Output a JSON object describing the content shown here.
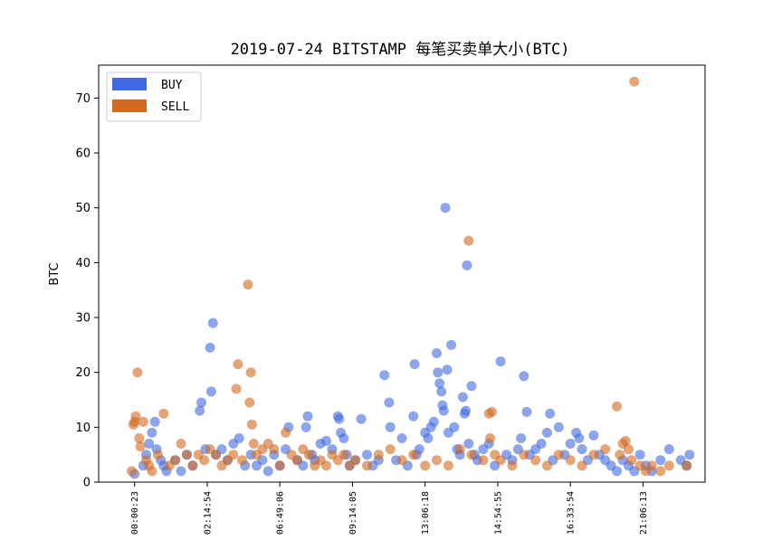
{
  "chart_data": {
    "type": "scatter",
    "title": "2019-07-24 BITSTAMP 每笔买卖单大小(BTC)",
    "ylabel": "BTC",
    "xlabel": "",
    "ylim": [
      0,
      76
    ],
    "yticks": [
      0,
      10,
      20,
      30,
      40,
      50,
      60,
      70
    ],
    "xlim": [
      0,
      1000
    ],
    "xticks": [
      {
        "x": 40,
        "label": "00:00:23"
      },
      {
        "x": 165,
        "label": "02:14:54"
      },
      {
        "x": 290,
        "label": "06:49:06"
      },
      {
        "x": 415,
        "label": "09:14:05"
      },
      {
        "x": 540,
        "label": "13:06:18"
      },
      {
        "x": 665,
        "label": "14:54:55"
      },
      {
        "x": 790,
        "label": "16:33:54"
      },
      {
        "x": 915,
        "label": "21:06:13"
      }
    ],
    "grid": false,
    "legend_position": "top-left",
    "series": [
      {
        "name": "BUY",
        "color": "#4169e1",
        "points": [
          [
            40,
            1.5
          ],
          [
            55,
            3
          ],
          [
            60,
            5
          ],
          [
            65,
            7
          ],
          [
            70,
            9
          ],
          [
            75,
            11
          ],
          [
            78,
            6
          ],
          [
            85,
            4
          ],
          [
            90,
            3
          ],
          [
            95,
            2
          ],
          [
            110,
            4
          ],
          [
            120,
            2
          ],
          [
            130,
            5
          ],
          [
            140,
            3
          ],
          [
            152,
            13
          ],
          [
            155,
            14.5
          ],
          [
            162,
            6
          ],
          [
            170,
            24.5
          ],
          [
            172,
            16.5
          ],
          [
            175,
            29
          ],
          [
            180,
            5
          ],
          [
            190,
            6
          ],
          [
            200,
            4
          ],
          [
            210,
            7
          ],
          [
            220,
            8
          ],
          [
            230,
            3
          ],
          [
            240,
            5
          ],
          [
            250,
            3
          ],
          [
            260,
            4
          ],
          [
            270,
            2
          ],
          [
            280,
            5
          ],
          [
            290,
            3
          ],
          [
            300,
            6
          ],
          [
            305,
            10
          ],
          [
            320,
            4
          ],
          [
            330,
            3
          ],
          [
            335,
            10
          ],
          [
            338,
            12
          ],
          [
            345,
            5
          ],
          [
            350,
            4
          ],
          [
            360,
            7
          ],
          [
            370,
            7.5
          ],
          [
            380,
            6
          ],
          [
            390,
            12
          ],
          [
            392,
            11.5
          ],
          [
            395,
            9
          ],
          [
            400,
            8
          ],
          [
            405,
            5
          ],
          [
            410,
            3
          ],
          [
            420,
            4
          ],
          [
            430,
            11.5
          ],
          [
            440,
            5
          ],
          [
            450,
            3
          ],
          [
            460,
            4
          ],
          [
            470,
            19.5
          ],
          [
            478,
            14.5
          ],
          [
            480,
            10
          ],
          [
            490,
            4
          ],
          [
            500,
            8
          ],
          [
            510,
            3
          ],
          [
            520,
            12
          ],
          [
            522,
            21.5
          ],
          [
            525,
            5
          ],
          [
            530,
            6
          ],
          [
            540,
            9
          ],
          [
            545,
            8
          ],
          [
            550,
            10
          ],
          [
            555,
            11
          ],
          [
            560,
            23.5
          ],
          [
            562,
            20
          ],
          [
            565,
            18
          ],
          [
            568,
            16.5
          ],
          [
            570,
            14
          ],
          [
            572,
            13
          ],
          [
            575,
            50
          ],
          [
            578,
            20.5
          ],
          [
            580,
            9
          ],
          [
            585,
            25
          ],
          [
            590,
            10
          ],
          [
            595,
            6
          ],
          [
            600,
            5
          ],
          [
            605,
            15.5
          ],
          [
            608,
            12.5
          ],
          [
            610,
            13
          ],
          [
            612,
            39.5
          ],
          [
            615,
            7
          ],
          [
            620,
            17.5
          ],
          [
            625,
            5
          ],
          [
            630,
            4
          ],
          [
            640,
            6
          ],
          [
            650,
            7
          ],
          [
            660,
            3
          ],
          [
            670,
            22
          ],
          [
            680,
            5
          ],
          [
            690,
            4
          ],
          [
            700,
            6
          ],
          [
            705,
            8
          ],
          [
            710,
            19.3
          ],
          [
            715,
            12.8
          ],
          [
            720,
            5
          ],
          [
            730,
            6
          ],
          [
            740,
            7
          ],
          [
            750,
            9
          ],
          [
            755,
            12.5
          ],
          [
            760,
            4
          ],
          [
            770,
            10
          ],
          [
            780,
            5
          ],
          [
            790,
            7
          ],
          [
            800,
            9
          ],
          [
            805,
            8
          ],
          [
            810,
            6
          ],
          [
            820,
            4
          ],
          [
            830,
            8.5
          ],
          [
            840,
            5
          ],
          [
            850,
            4
          ],
          [
            860,
            3
          ],
          [
            870,
            2
          ],
          [
            880,
            4
          ],
          [
            890,
            3
          ],
          [
            900,
            2
          ],
          [
            910,
            5
          ],
          [
            920,
            3
          ],
          [
            930,
            2
          ],
          [
            945,
            4
          ],
          [
            960,
            6
          ],
          [
            980,
            4
          ],
          [
            990,
            3
          ],
          [
            995,
            5
          ]
        ]
      },
      {
        "name": "SELL",
        "color": "#d2691e",
        "points": [
          [
            35,
            2
          ],
          [
            38,
            10.5
          ],
          [
            40,
            11
          ],
          [
            42,
            12
          ],
          [
            45,
            20
          ],
          [
            48,
            8
          ],
          [
            50,
            6.5
          ],
          [
            55,
            11
          ],
          [
            60,
            4
          ],
          [
            65,
            3
          ],
          [
            70,
            2
          ],
          [
            80,
            5
          ],
          [
            90,
            12.5
          ],
          [
            100,
            3
          ],
          [
            110,
            4
          ],
          [
            120,
            7
          ],
          [
            130,
            5
          ],
          [
            140,
            3
          ],
          [
            150,
            5
          ],
          [
            160,
            4
          ],
          [
            170,
            6
          ],
          [
            180,
            5
          ],
          [
            190,
            3
          ],
          [
            200,
            4
          ],
          [
            210,
            5
          ],
          [
            215,
            17
          ],
          [
            218,
            21.5
          ],
          [
            225,
            4
          ],
          [
            235,
            36
          ],
          [
            238,
            14.5
          ],
          [
            240,
            20
          ],
          [
            242,
            10.5
          ],
          [
            245,
            7
          ],
          [
            250,
            5
          ],
          [
            260,
            6
          ],
          [
            270,
            7
          ],
          [
            280,
            6
          ],
          [
            290,
            3
          ],
          [
            300,
            9
          ],
          [
            310,
            5
          ],
          [
            320,
            4
          ],
          [
            330,
            6
          ],
          [
            340,
            5
          ],
          [
            350,
            3
          ],
          [
            360,
            4
          ],
          [
            370,
            3
          ],
          [
            380,
            5
          ],
          [
            390,
            4
          ],
          [
            400,
            5
          ],
          [
            410,
            3
          ],
          [
            420,
            4
          ],
          [
            440,
            3
          ],
          [
            460,
            5
          ],
          [
            480,
            6
          ],
          [
            500,
            4
          ],
          [
            520,
            5
          ],
          [
            540,
            3
          ],
          [
            560,
            4
          ],
          [
            580,
            3
          ],
          [
            600,
            6
          ],
          [
            615,
            44
          ],
          [
            620,
            5
          ],
          [
            640,
            4
          ],
          [
            650,
            12.5
          ],
          [
            652,
            8
          ],
          [
            655,
            12.8
          ],
          [
            660,
            5
          ],
          [
            670,
            4
          ],
          [
            690,
            3
          ],
          [
            710,
            5
          ],
          [
            730,
            4
          ],
          [
            750,
            3
          ],
          [
            770,
            5
          ],
          [
            790,
            4
          ],
          [
            810,
            3
          ],
          [
            830,
            5
          ],
          [
            850,
            6
          ],
          [
            870,
            13.8
          ],
          [
            875,
            5
          ],
          [
            880,
            7
          ],
          [
            885,
            7.5
          ],
          [
            890,
            6
          ],
          [
            895,
            4
          ],
          [
            900,
            73
          ],
          [
            910,
            3
          ],
          [
            920,
            2
          ],
          [
            930,
            3
          ],
          [
            945,
            2
          ],
          [
            960,
            3
          ],
          [
            990,
            3
          ]
        ]
      }
    ]
  }
}
